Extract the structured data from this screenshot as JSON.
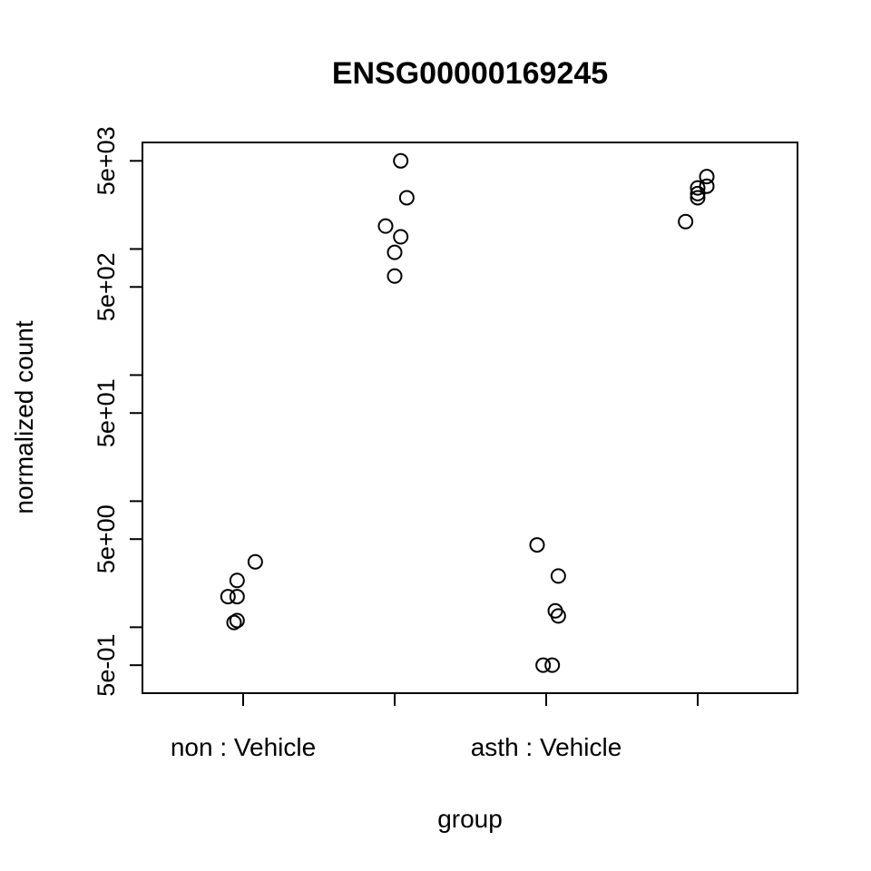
{
  "chart_data": {
    "type": "scatter",
    "title": "ENSG00000169245",
    "xlabel": "group",
    "ylabel": "normalized count",
    "y_scale": "log10",
    "ylim": [
      0.3,
      7000
    ],
    "grid": false,
    "legend": "none",
    "categories": [
      "non : Vehicle",
      "",
      "asth : Vehicle",
      ""
    ],
    "y_tick_labels": [
      "5e-01",
      "5e+00",
      "5e+01",
      "5e+02",
      "5e+03"
    ],
    "y_tick_values": [
      0.5,
      1,
      5,
      10,
      50,
      100,
      500,
      1000,
      5000
    ],
    "points": [
      {
        "group": 1,
        "jitter": 0.04,
        "y": 3.3
      },
      {
        "group": 1,
        "jitter": -0.02,
        "y": 2.35
      },
      {
        "group": 1,
        "jitter": -0.05,
        "y": 1.75
      },
      {
        "group": 1,
        "jitter": -0.02,
        "y": 1.75
      },
      {
        "group": 1,
        "jitter": -0.02,
        "y": 1.13
      },
      {
        "group": 1,
        "jitter": -0.03,
        "y": 1.09
      },
      {
        "group": 2,
        "jitter": 0.02,
        "y": 5000
      },
      {
        "group": 2,
        "jitter": 0.04,
        "y": 2550
      },
      {
        "group": 2,
        "jitter": -0.03,
        "y": 1520
      },
      {
        "group": 2,
        "jitter": 0.02,
        "y": 1250
      },
      {
        "group": 2,
        "jitter": 0.0,
        "y": 940
      },
      {
        "group": 2,
        "jitter": 0.0,
        "y": 610
      },
      {
        "group": 3,
        "jitter": -0.03,
        "y": 4.5
      },
      {
        "group": 3,
        "jitter": 0.04,
        "y": 2.55
      },
      {
        "group": 3,
        "jitter": 0.03,
        "y": 1.35
      },
      {
        "group": 3,
        "jitter": 0.04,
        "y": 1.23
      },
      {
        "group": 3,
        "jitter": -0.01,
        "y": 0.5
      },
      {
        "group": 3,
        "jitter": 0.02,
        "y": 0.5
      },
      {
        "group": 4,
        "jitter": 0.03,
        "y": 3750
      },
      {
        "group": 4,
        "jitter": 0.03,
        "y": 3150
      },
      {
        "group": 4,
        "jitter": 0.0,
        "y": 3050
      },
      {
        "group": 4,
        "jitter": 0.0,
        "y": 2750
      },
      {
        "group": 4,
        "jitter": 0.0,
        "y": 2550
      },
      {
        "group": 4,
        "jitter": -0.04,
        "y": 1650
      }
    ]
  }
}
